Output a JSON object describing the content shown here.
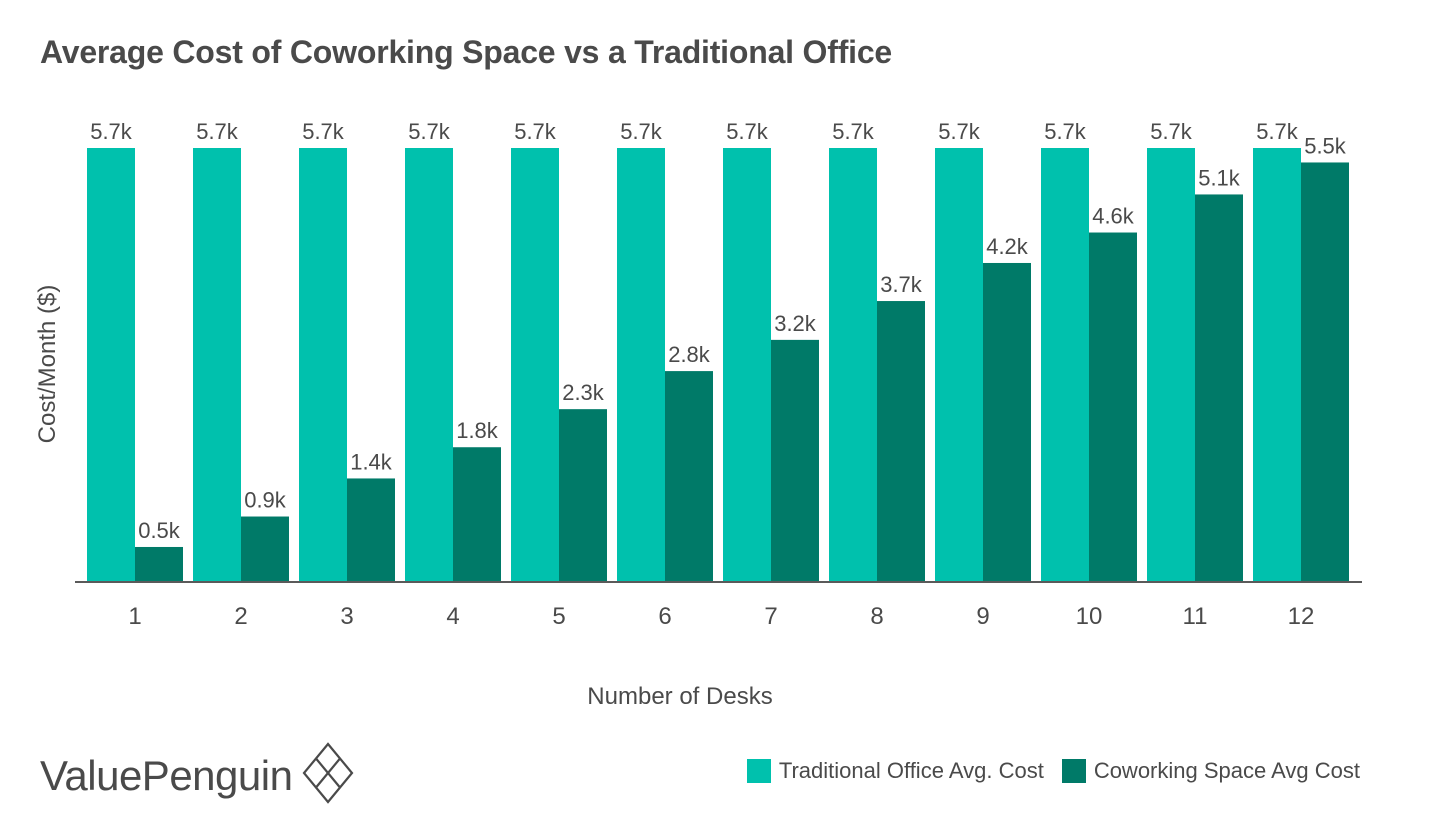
{
  "chart_data": {
    "type": "bar",
    "title": "Average Cost of Coworking Space vs a Traditional Office",
    "xlabel": "Number of Desks",
    "ylabel": "Cost/Month ($)",
    "categories": [
      "1",
      "2",
      "3",
      "4",
      "5",
      "6",
      "7",
      "8",
      "9",
      "10",
      "11",
      "12"
    ],
    "series": [
      {
        "name": "Traditional Office Avg. Cost",
        "color": "#00c1ad",
        "values": [
          5.7,
          5.7,
          5.7,
          5.7,
          5.7,
          5.7,
          5.7,
          5.7,
          5.7,
          5.7,
          5.7,
          5.7
        ],
        "labels": [
          "5.7k",
          "5.7k",
          "5.7k",
          "5.7k",
          "5.7k",
          "5.7k",
          "5.7k",
          "5.7k",
          "5.7k",
          "5.7k",
          "5.7k",
          "5.7k"
        ]
      },
      {
        "name": "Coworking Space Avg Cost",
        "color": "#007a68",
        "values": [
          0.46,
          0.86,
          1.36,
          1.77,
          2.27,
          2.77,
          3.18,
          3.69,
          4.19,
          4.59,
          5.09,
          5.51
        ],
        "labels": [
          "0.5k",
          "0.9k",
          "1.4k",
          "1.8k",
          "2.3k",
          "2.8k",
          "3.2k",
          "3.7k",
          "4.2k",
          "4.6k",
          "5.1k",
          "5.5k"
        ]
      }
    ],
    "unit": "thousand $",
    "ylim": [
      0,
      5.7
    ],
    "grid": false,
    "y_axis_ticks_visible": false,
    "legend_position": "bottom-right"
  },
  "branding": {
    "logo_text": "ValuePenguin"
  },
  "icons": {
    "logo_mark": "diamond-crosshatch-icon"
  }
}
